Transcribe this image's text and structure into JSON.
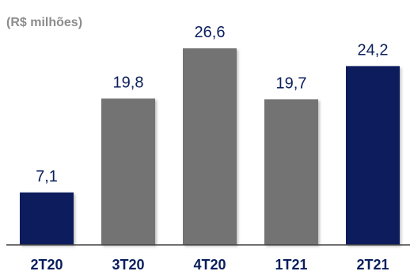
{
  "chart_data": {
    "type": "bar",
    "unit_label": "(R$ milhões)",
    "categories": [
      "2T20",
      "3T20",
      "4T20",
      "1T21",
      "2T21"
    ],
    "values": [
      7.1,
      19.8,
      26.6,
      19.7,
      24.2
    ],
    "value_labels": [
      "7,1",
      "19,8",
      "26,6",
      "19,7",
      "24,2"
    ],
    "bar_colors": [
      "#0a1f5c",
      "#737373",
      "#737373",
      "#737373",
      "#0a1f5c"
    ],
    "ylim": [
      0,
      26.6
    ],
    "grid": false,
    "legend": "none"
  }
}
